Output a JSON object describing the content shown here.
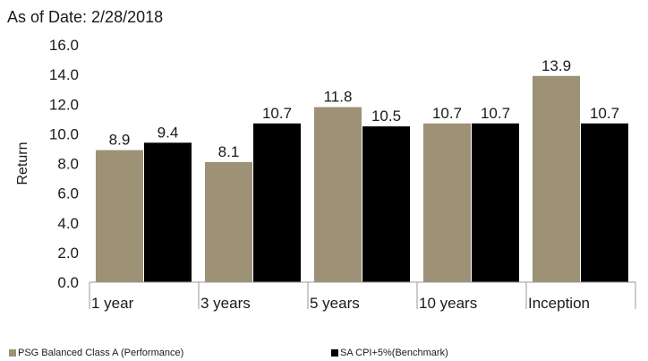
{
  "chart_data": {
    "type": "bar",
    "subtitle": "As of Date: 2/28/2018",
    "ylabel": "Return",
    "xlabel": "",
    "ylim": [
      0,
      16
    ],
    "yticks": [
      "0.0",
      "2.0",
      "4.0",
      "6.0",
      "8.0",
      "10.0",
      "12.0",
      "14.0",
      "16.0"
    ],
    "categories": [
      "1 year",
      "3 years",
      "5 years",
      "10 years",
      "Inception"
    ],
    "series": [
      {
        "name": "PSG Balanced Class A (Performance)",
        "color": "#9d9276",
        "values": [
          8.9,
          8.1,
          11.8,
          10.7,
          13.9
        ],
        "labels": [
          "8.9",
          "8.1",
          "11.8",
          "10.7",
          "13.9"
        ]
      },
      {
        "name": "SA CPI+5%(Benchmark)",
        "color": "#000000",
        "values": [
          9.4,
          10.7,
          10.5,
          10.7,
          10.7
        ],
        "labels": [
          "9.4",
          "10.7",
          "10.5",
          "10.7",
          "10.7"
        ]
      }
    ],
    "grid": false,
    "legend_position": "bottom"
  }
}
